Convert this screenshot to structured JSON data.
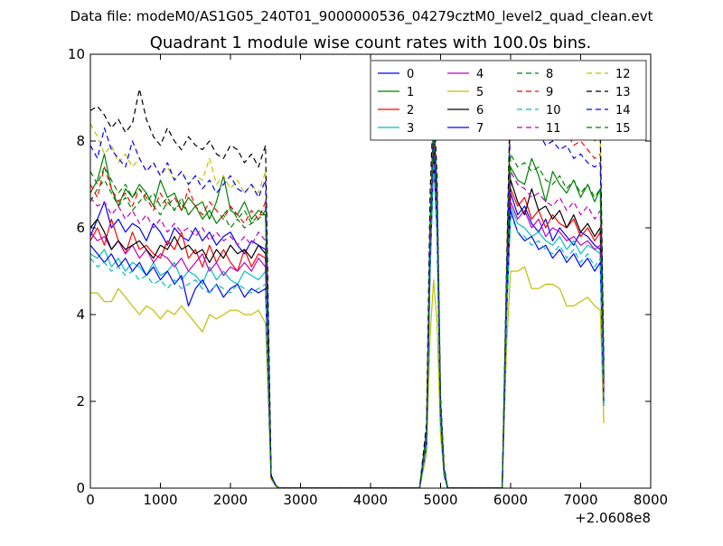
{
  "figure": {
    "suptitle": "Data file: modeM0/AS1G05_240T01_9000000536_04279cztM0_level2_quad_clean.evt"
  },
  "chart_data": {
    "type": "line",
    "title": "Quadrant 1 module wise count rates with 100.0s bins.",
    "xlabel": "",
    "ylabel": "",
    "x_offset_label": "+2.0608e8",
    "xlim": [
      0,
      8000
    ],
    "ylim": [
      0,
      10
    ],
    "xticks": [
      0,
      1000,
      2000,
      3000,
      4000,
      5000,
      6000,
      7000,
      8000
    ],
    "yticks": [
      0,
      2,
      4,
      6,
      8,
      10
    ],
    "grid": false,
    "legend": {
      "position": "top-right",
      "columns": 4
    },
    "x": [
      0,
      100,
      200,
      300,
      400,
      500,
      600,
      700,
      800,
      900,
      1000,
      1100,
      1200,
      1300,
      1400,
      1500,
      1600,
      1700,
      1800,
      1900,
      2000,
      2100,
      2200,
      2300,
      2400,
      2500,
      2580,
      2650,
      2700,
      4700,
      4800,
      4850,
      4900,
      4950,
      5000,
      5050,
      5100,
      5880,
      5940,
      6000,
      6100,
      6200,
      6300,
      6400,
      6500,
      6600,
      6700,
      6800,
      6900,
      7000,
      7100,
      7200,
      7280,
      7330
    ],
    "series": [
      {
        "name": "0",
        "color": "#0000ff",
        "style": "solid",
        "values": [
          5.8,
          6.2,
          6.6,
          6.0,
          6.2,
          5.9,
          6.1,
          6.0,
          5.7,
          6.1,
          5.9,
          5.6,
          6.0,
          5.8,
          5.7,
          6.0,
          5.7,
          5.9,
          5.6,
          5.8,
          5.9,
          5.6,
          5.4,
          5.7,
          5.6,
          5.5,
          0.25,
          0.05,
          0,
          0,
          1.2,
          5.5,
          8.5,
          6.5,
          1.8,
          0.4,
          0,
          0,
          4.2,
          6.8,
          6.3,
          6.5,
          6.1,
          5.9,
          6.2,
          5.7,
          6.0,
          5.8,
          5.6,
          5.9,
          5.8,
          5.6,
          5.5,
          2.2
        ]
      },
      {
        "name": "1",
        "color": "#008000",
        "style": "solid",
        "values": [
          6.8,
          7.1,
          7.7,
          6.9,
          6.5,
          6.9,
          6.7,
          7.0,
          6.8,
          6.5,
          7.1,
          6.7,
          6.8,
          6.4,
          6.7,
          6.5,
          6.6,
          6.2,
          6.6,
          7.2,
          6.4,
          6.3,
          6.6,
          6.2,
          6.4,
          6.3,
          0.25,
          0.05,
          0,
          0,
          1.3,
          5.8,
          8.3,
          6.6,
          1.8,
          0.4,
          0,
          0,
          4.5,
          7.4,
          7.1,
          7.0,
          7.6,
          7.2,
          6.6,
          7.3,
          7.0,
          6.8,
          7.1,
          6.7,
          7.0,
          6.6,
          6.9,
          2.5
        ]
      },
      {
        "name": "2",
        "color": "#ff0000",
        "style": "solid",
        "values": [
          5.7,
          6.0,
          5.6,
          6.2,
          5.7,
          5.4,
          5.9,
          5.5,
          5.6,
          5.4,
          5.3,
          5.7,
          5.5,
          5.9,
          5.3,
          5.5,
          5.1,
          5.6,
          5.2,
          5.5,
          5.2,
          5.0,
          5.5,
          5.1,
          5.4,
          5.3,
          0.25,
          0.05,
          0,
          0,
          1.2,
          5.6,
          8.2,
          6.4,
          1.7,
          0.4,
          0,
          0,
          4.3,
          6.9,
          6.5,
          6.7,
          6.2,
          6.4,
          6.0,
          6.3,
          6.1,
          6.0,
          6.2,
          5.8,
          6.0,
          5.7,
          5.9,
          2.3
        ]
      },
      {
        "name": "3",
        "color": "#00bfbf",
        "style": "solid",
        "values": [
          5.4,
          5.3,
          5.5,
          5.1,
          5.3,
          5.0,
          5.2,
          5.1,
          4.9,
          5.2,
          4.9,
          5.0,
          5.2,
          4.8,
          5.0,
          4.9,
          4.7,
          5.1,
          4.8,
          5.0,
          4.8,
          4.7,
          5.0,
          4.9,
          4.8,
          5.0,
          0.25,
          0.05,
          0,
          0,
          1.0,
          5.2,
          7.8,
          6.0,
          1.6,
          0.3,
          0,
          0,
          4.0,
          6.5,
          6.1,
          6.0,
          5.8,
          5.9,
          5.7,
          5.6,
          5.8,
          5.5,
          5.7,
          5.4,
          5.6,
          5.5,
          5.4,
          2.0
        ]
      },
      {
        "name": "4",
        "color": "#bf00bf",
        "style": "solid",
        "values": [
          5.9,
          5.7,
          5.8,
          5.5,
          5.7,
          5.4,
          5.6,
          5.3,
          5.5,
          5.2,
          5.4,
          5.3,
          5.1,
          5.3,
          5.0,
          5.2,
          5.4,
          5.0,
          5.2,
          4.9,
          5.1,
          5.0,
          5.2,
          5.0,
          5.3,
          5.1,
          0.25,
          0.05,
          0,
          0,
          1.1,
          5.4,
          8.0,
          6.2,
          1.7,
          0.4,
          0,
          0,
          4.1,
          6.6,
          6.2,
          6.4,
          6.0,
          6.2,
          5.8,
          6.0,
          5.9,
          5.7,
          5.8,
          5.6,
          5.7,
          5.5,
          5.6,
          2.1
        ]
      },
      {
        "name": "5",
        "color": "#bfbf00",
        "style": "solid",
        "values": [
          4.5,
          4.5,
          4.3,
          4.3,
          4.6,
          4.4,
          4.2,
          4.0,
          4.2,
          4.1,
          3.9,
          4.1,
          4.0,
          4.2,
          4.0,
          3.8,
          3.6,
          4.0,
          3.9,
          4.0,
          4.1,
          4.1,
          4.0,
          4.0,
          4.1,
          3.8,
          0.2,
          0.05,
          0,
          0,
          0.8,
          3.5,
          4.8,
          3.8,
          1.2,
          0.3,
          0,
          0,
          3.2,
          5.0,
          5.0,
          5.1,
          4.6,
          4.6,
          4.7,
          4.7,
          4.6,
          4.2,
          4.2,
          4.3,
          4.4,
          4.2,
          4.1,
          1.5
        ]
      },
      {
        "name": "6",
        "color": "#000000",
        "style": "solid",
        "values": [
          6.0,
          6.2,
          5.9,
          5.5,
          5.7,
          5.5,
          5.6,
          5.7,
          5.5,
          5.3,
          5.6,
          5.5,
          5.8,
          5.5,
          5.6,
          5.4,
          5.5,
          5.2,
          5.5,
          5.3,
          5.6,
          5.4,
          5.5,
          5.3,
          5.6,
          5.4,
          0.25,
          0.05,
          0,
          0,
          1.2,
          5.5,
          8.1,
          6.3,
          1.7,
          0.4,
          0,
          0,
          4.3,
          7.1,
          6.6,
          6.3,
          6.9,
          6.4,
          6.5,
          6.2,
          6.4,
          6.0,
          6.3,
          5.9,
          6.1,
          5.8,
          6.0,
          2.4
        ]
      },
      {
        "name": "7",
        "color": "#0000ff",
        "style": "solid",
        "values": [
          5.6,
          5.4,
          5.2,
          5.4,
          5.1,
          5.3,
          5.0,
          5.2,
          4.9,
          5.1,
          4.8,
          5.0,
          4.7,
          4.9,
          4.2,
          4.6,
          4.8,
          4.5,
          4.7,
          4.4,
          4.6,
          4.7,
          4.4,
          4.6,
          4.5,
          4.6,
          0.25,
          0.05,
          0,
          0,
          1.0,
          5.0,
          7.6,
          5.9,
          1.6,
          0.3,
          0,
          0,
          3.9,
          6.4,
          5.9,
          5.7,
          5.8,
          5.5,
          5.6,
          5.3,
          5.5,
          5.2,
          5.4,
          5.1,
          5.3,
          5.0,
          5.2,
          1.9
        ]
      },
      {
        "name": "8",
        "color": "#008000",
        "style": "dashed",
        "values": [
          6.6,
          6.9,
          7.1,
          6.8,
          6.5,
          6.7,
          6.4,
          6.6,
          6.8,
          6.5,
          6.3,
          6.6,
          6.4,
          6.7,
          6.3,
          6.5,
          6.2,
          6.4,
          6.1,
          6.3,
          6.5,
          6.2,
          6.4,
          6.1,
          6.3,
          6.3,
          0.25,
          0.05,
          0,
          0,
          1.3,
          5.9,
          8.4,
          6.7,
          1.9,
          0.4,
          0,
          0,
          4.6,
          9.5,
          9.6,
          9.0,
          9.4,
          8.9,
          9.1,
          8.6,
          8.9,
          8.4,
          8.6,
          8.2,
          8.4,
          8.0,
          8.1,
          2.7
        ]
      },
      {
        "name": "9",
        "color": "#ff0000",
        "style": "dashed",
        "values": [
          7.0,
          6.7,
          7.4,
          6.9,
          6.6,
          6.8,
          6.5,
          6.9,
          6.7,
          6.4,
          6.8,
          6.5,
          6.7,
          6.4,
          6.9,
          6.5,
          6.3,
          6.6,
          6.4,
          6.2,
          6.5,
          6.3,
          6.1,
          6.4,
          6.2,
          6.6,
          0.25,
          0.05,
          0,
          0,
          1.3,
          5.8,
          8.3,
          6.5,
          1.8,
          0.4,
          0,
          0,
          4.5,
          9.0,
          8.7,
          8.8,
          8.5,
          8.6,
          8.3,
          8.4,
          8.1,
          8.2,
          7.9,
          8.0,
          7.8,
          7.6,
          7.7,
          2.6
        ]
      },
      {
        "name": "10",
        "color": "#00bfbf",
        "style": "dashed",
        "values": [
          5.3,
          5.1,
          5.2,
          5.0,
          5.1,
          4.9,
          5.0,
          4.8,
          4.9,
          4.7,
          4.8,
          4.6,
          4.8,
          4.6,
          4.7,
          4.8,
          4.6,
          4.5,
          4.7,
          4.6,
          4.5,
          4.7,
          4.6,
          4.5,
          4.6,
          4.7,
          0.25,
          0.05,
          0,
          0,
          1.0,
          5.0,
          7.5,
          5.8,
          1.5,
          0.3,
          0,
          0,
          3.8,
          6.3,
          5.9,
          5.8,
          5.6,
          5.7,
          5.5,
          5.4,
          5.6,
          5.3,
          5.5,
          5.2,
          5.4,
          5.1,
          5.3,
          1.9
        ]
      },
      {
        "name": "11",
        "color": "#bf00bf",
        "style": "dashed",
        "values": [
          6.7,
          6.5,
          6.6,
          6.3,
          6.5,
          6.2,
          6.4,
          6.1,
          6.3,
          6.0,
          6.2,
          5.9,
          6.1,
          5.9,
          6.0,
          5.8,
          6.0,
          5.7,
          5.9,
          5.7,
          5.8,
          5.6,
          5.8,
          5.6,
          5.9,
          5.7,
          0.25,
          0.05,
          0,
          0,
          1.2,
          5.6,
          8.2,
          6.4,
          1.8,
          0.4,
          0,
          0,
          4.4,
          7.3,
          7.0,
          6.9,
          6.7,
          6.8,
          6.6,
          6.5,
          6.7,
          6.4,
          6.6,
          6.3,
          6.5,
          6.2,
          6.4,
          2.3
        ]
      },
      {
        "name": "12",
        "color": "#bfbf00",
        "style": "dashed",
        "values": [
          8.4,
          8.1,
          7.7,
          7.9,
          7.5,
          7.7,
          7.4,
          7.6,
          7.3,
          7.5,
          7.2,
          7.4,
          7.1,
          7.3,
          7.0,
          7.2,
          7.1,
          7.6,
          7.0,
          7.2,
          6.9,
          7.1,
          6.8,
          7.0,
          6.8,
          7.3,
          0.3,
          0.05,
          0,
          0,
          1.4,
          6.5,
          8.8,
          7.0,
          2.0,
          0.5,
          0,
          0,
          4.9,
          9.3,
          9.2,
          9.1,
          8.9,
          9.0,
          8.7,
          8.6,
          8.8,
          8.4,
          8.5,
          8.2,
          8.4,
          8.0,
          8.1,
          2.8
        ]
      },
      {
        "name": "13",
        "color": "#000000",
        "style": "dashed",
        "values": [
          8.7,
          8.8,
          8.6,
          8.3,
          8.5,
          8.2,
          8.4,
          9.2,
          8.5,
          8.1,
          7.9,
          8.3,
          8.0,
          7.8,
          8.1,
          7.9,
          7.8,
          8.0,
          7.7,
          7.6,
          7.9,
          7.8,
          7.5,
          7.7,
          7.4,
          7.9,
          0.3,
          0.05,
          0,
          0,
          1.5,
          6.8,
          9.0,
          7.2,
          2.1,
          0.5,
          0,
          0,
          5.0,
          9.4,
          9.6,
          9.2,
          9.3,
          9.0,
          9.1,
          8.8,
          8.9,
          8.6,
          8.7,
          8.4,
          8.5,
          8.2,
          8.3,
          2.9
        ]
      },
      {
        "name": "14",
        "color": "#0000ff",
        "style": "dashed",
        "values": [
          7.9,
          7.6,
          8.3,
          7.8,
          7.6,
          7.4,
          8.0,
          7.6,
          7.3,
          7.5,
          7.2,
          7.5,
          7.1,
          7.3,
          7.0,
          7.2,
          6.9,
          7.1,
          6.8,
          7.0,
          7.2,
          6.9,
          6.8,
          7.0,
          6.7,
          7.1,
          0.3,
          0.05,
          0,
          0,
          1.3,
          6.0,
          8.5,
          6.8,
          1.9,
          0.4,
          0,
          0,
          4.7,
          8.6,
          8.3,
          8.4,
          8.1,
          8.2,
          7.9,
          8.0,
          7.8,
          7.9,
          7.6,
          7.7,
          7.5,
          7.4,
          7.5,
          2.6
        ]
      },
      {
        "name": "15",
        "color": "#008000",
        "style": "dashed",
        "values": [
          7.3,
          7.0,
          7.4,
          7.1,
          6.8,
          7.0,
          6.7,
          6.9,
          6.6,
          6.8,
          6.5,
          6.7,
          6.4,
          6.6,
          6.3,
          6.5,
          6.2,
          6.4,
          6.1,
          6.3,
          6.0,
          6.2,
          6.0,
          6.1,
          6.2,
          6.4,
          0.25,
          0.05,
          0,
          0,
          1.3,
          5.9,
          8.3,
          6.6,
          1.8,
          0.4,
          0,
          0,
          4.6,
          7.7,
          7.4,
          7.5,
          7.3,
          7.4,
          7.1,
          7.0,
          7.2,
          6.9,
          7.1,
          6.8,
          7.0,
          6.7,
          6.9,
          2.5
        ]
      }
    ]
  }
}
